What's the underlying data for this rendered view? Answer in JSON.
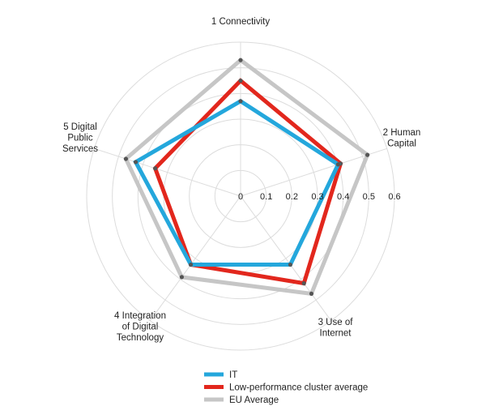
{
  "chart_data": {
    "type": "radar",
    "axes": [
      [
        "1 Connectivity"
      ],
      [
        "2 Human",
        "Capital"
      ],
      [
        "3 Use of",
        "Internet"
      ],
      [
        "4 Integration",
        "of Digital",
        "Technology"
      ],
      [
        "5 Digital",
        "Public",
        "Services"
      ]
    ],
    "rlim": [
      0,
      0.6
    ],
    "ticks": [
      "0",
      "0.1",
      "0.2",
      "0.3",
      "0.4",
      "0.5",
      "0.6"
    ],
    "grid": true,
    "legend_position": "bottom",
    "series": [
      {
        "name": "EU Average",
        "color": "#c6c6c6",
        "values": [
          0.53,
          0.52,
          0.47,
          0.39,
          0.47
        ]
      },
      {
        "name": "Low-performance cluster average",
        "color": "#e2271d",
        "values": [
          0.45,
          0.41,
          0.42,
          0.33,
          0.35
        ]
      },
      {
        "name": "IT",
        "color": "#24a7dc",
        "values": [
          0.37,
          0.4,
          0.33,
          0.33,
          0.43
        ]
      }
    ],
    "legend": [
      "IT",
      "Low-performance cluster average",
      "EU Average"
    ]
  }
}
